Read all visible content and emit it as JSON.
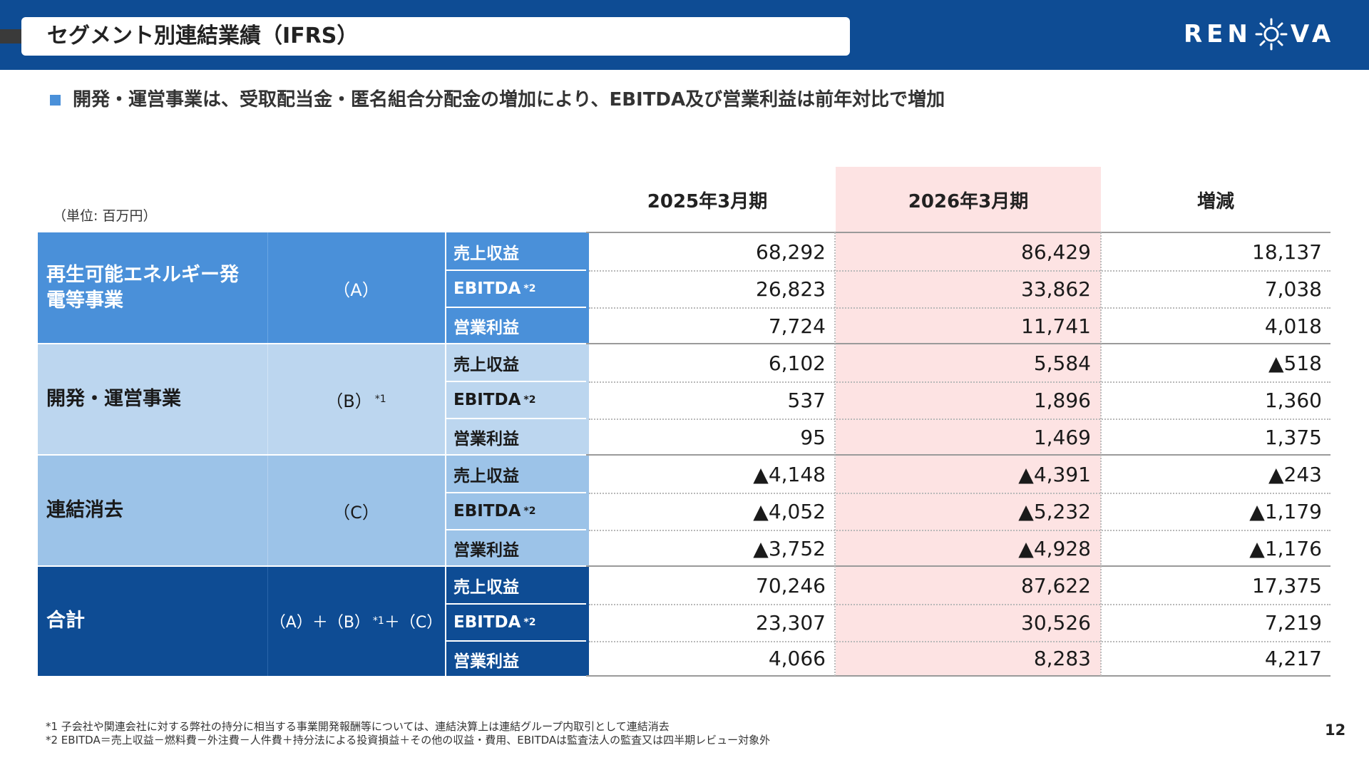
{
  "header": {
    "title": "セグメント別連結業績（IFRS）",
    "logo_left": "REN",
    "logo_right": "VA",
    "logo_alt": "RENOVA"
  },
  "subtitle": "開発・運営事業は、受取配当金・匿名組合分配金の増加により、EBITDA及び営業利益は前年対比で増加",
  "table": {
    "unit": "（単位: 百万円）",
    "columns": [
      "2025年3月期",
      "2026年3月期",
      "増減"
    ],
    "segments": [
      {
        "name": "再生可能エネルギー発電等事業",
        "symbol": "（A）",
        "symbol_sup": "",
        "rows": [
          {
            "metric": "売上収益",
            "metric_sup": "",
            "v2025": "68,292",
            "v2026": "86,429",
            "diff": "18,137"
          },
          {
            "metric": "EBITDA",
            "metric_sup": "*2",
            "v2025": "26,823",
            "v2026": "33,862",
            "diff": "7,038"
          },
          {
            "metric": "営業利益",
            "metric_sup": "",
            "v2025": "7,724",
            "v2026": "11,741",
            "diff": "4,018"
          }
        ]
      },
      {
        "name": "開発・運営事業",
        "symbol": "（B）",
        "symbol_sup": "*1",
        "rows": [
          {
            "metric": "売上収益",
            "metric_sup": "",
            "v2025": "6,102",
            "v2026": "5,584",
            "diff": "▲518"
          },
          {
            "metric": "EBITDA",
            "metric_sup": "*2",
            "v2025": "537",
            "v2026": "1,896",
            "diff": "1,360"
          },
          {
            "metric": "営業利益",
            "metric_sup": "",
            "v2025": "95",
            "v2026": "1,469",
            "diff": "1,375"
          }
        ]
      },
      {
        "name": "連結消去",
        "symbol": "（C）",
        "symbol_sup": "",
        "rows": [
          {
            "metric": "売上収益",
            "metric_sup": "",
            "v2025": "▲4,148",
            "v2026": "▲4,391",
            "diff": "▲243"
          },
          {
            "metric": "EBITDA",
            "metric_sup": "*2",
            "v2025": "▲4,052",
            "v2026": "▲5,232",
            "diff": "▲1,179"
          },
          {
            "metric": "営業利益",
            "metric_sup": "",
            "v2025": "▲3,752",
            "v2026": "▲4,928",
            "diff": "▲1,176"
          }
        ]
      },
      {
        "name": "合計",
        "symbol": "（A）＋（B）",
        "symbol_sup": "*1",
        "symbol_tail": "＋（C）",
        "rows": [
          {
            "metric": "売上収益",
            "metric_sup": "",
            "v2025": "70,246",
            "v2026": "87,622",
            "diff": "17,375"
          },
          {
            "metric": "EBITDA",
            "metric_sup": "*2",
            "v2025": "23,307",
            "v2026": "30,526",
            "diff": "7,219"
          },
          {
            "metric": "営業利益",
            "metric_sup": "",
            "v2025": "4,066",
            "v2026": "8,283",
            "diff": "4,217"
          }
        ]
      }
    ],
    "colors": {
      "seg1": "#4a90d9",
      "seg1_metric": "#4a90d9",
      "seg2": "#bcd6ef",
      "seg3": "#9cc3e8",
      "seg4": "#0e4c94",
      "highlight": "#fde3e3"
    }
  },
  "footnotes": [
    "*1 子会社や関連会社に対する弊社の持分に相当する事業開発報酬等については、連結決算上は連結グループ内取引として連結消去",
    "*2 EBITDA＝売上収益－燃料費－外注費－人件費＋持分法による投資損益＋その他の収益・費用、EBITDAは監査法人の監査又は四半期レビュー対象外"
  ],
  "page_number": "12"
}
